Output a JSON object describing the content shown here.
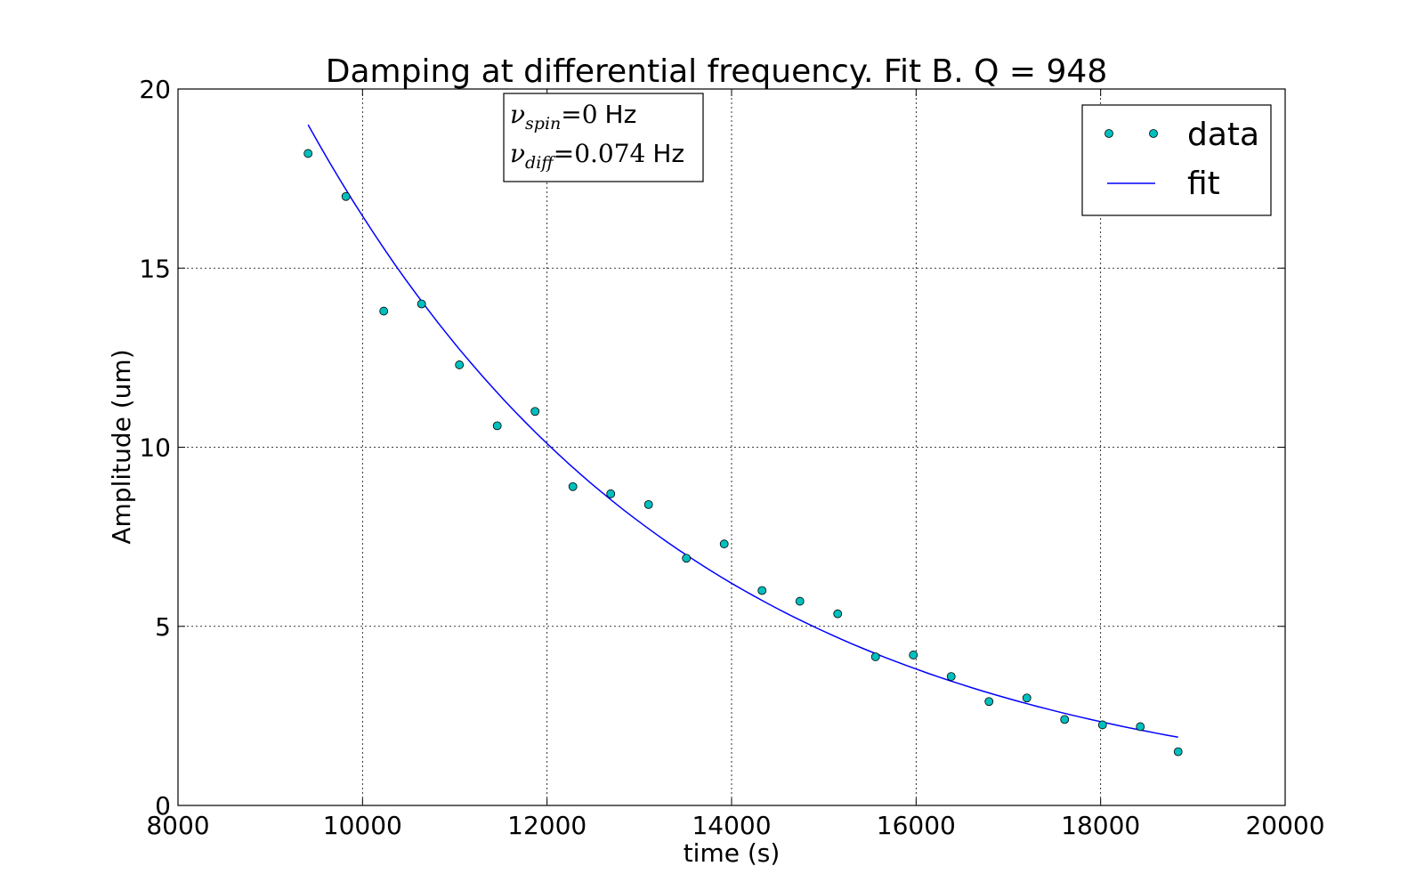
{
  "chart_data": {
    "type": "scatter",
    "title": "Damping at differential frequency. Fit B. Q = 948",
    "xlabel": "time (s)",
    "ylabel": "Amplitude (um)",
    "xlim": [
      8000,
      20000
    ],
    "ylim": [
      0,
      20
    ],
    "xticks": [
      8000,
      10000,
      12000,
      14000,
      16000,
      18000,
      20000
    ],
    "yticks": [
      0,
      5,
      10,
      15,
      20
    ],
    "grid": true,
    "legend_position": "top-right",
    "annotation": {
      "line1_symbol": "ν",
      "line1_sub": "spin",
      "line1_value": "=0",
      "line1_unit": "Hz",
      "line2_symbol": "ν",
      "line2_sub": "diff",
      "line2_value": "=0.074",
      "line2_unit": "Hz"
    },
    "series": [
      {
        "name": "data",
        "kind": "markers",
        "color": "#00bfbf",
        "x": [
          9410,
          9820,
          10230,
          10640,
          11050,
          11460,
          11870,
          12280,
          12690,
          13100,
          13510,
          13920,
          14330,
          14740,
          15150,
          15560,
          15970,
          16380,
          16790,
          17200,
          17610,
          18020,
          18430,
          18840
        ],
        "y": [
          18.2,
          17.0,
          13.8,
          14.0,
          12.3,
          10.6,
          11.0,
          8.9,
          8.7,
          8.4,
          6.9,
          7.3,
          6.0,
          5.7,
          5.35,
          4.15,
          4.2,
          3.6,
          2.9,
          3.0,
          2.4,
          2.25,
          2.2,
          1.5
        ]
      },
      {
        "name": "fit",
        "kind": "line",
        "color": "#0000ff",
        "amplitude_at_start": 19.0,
        "x_start": 9410,
        "x_end": 18840,
        "decay_time_s": 4100
      }
    ]
  }
}
